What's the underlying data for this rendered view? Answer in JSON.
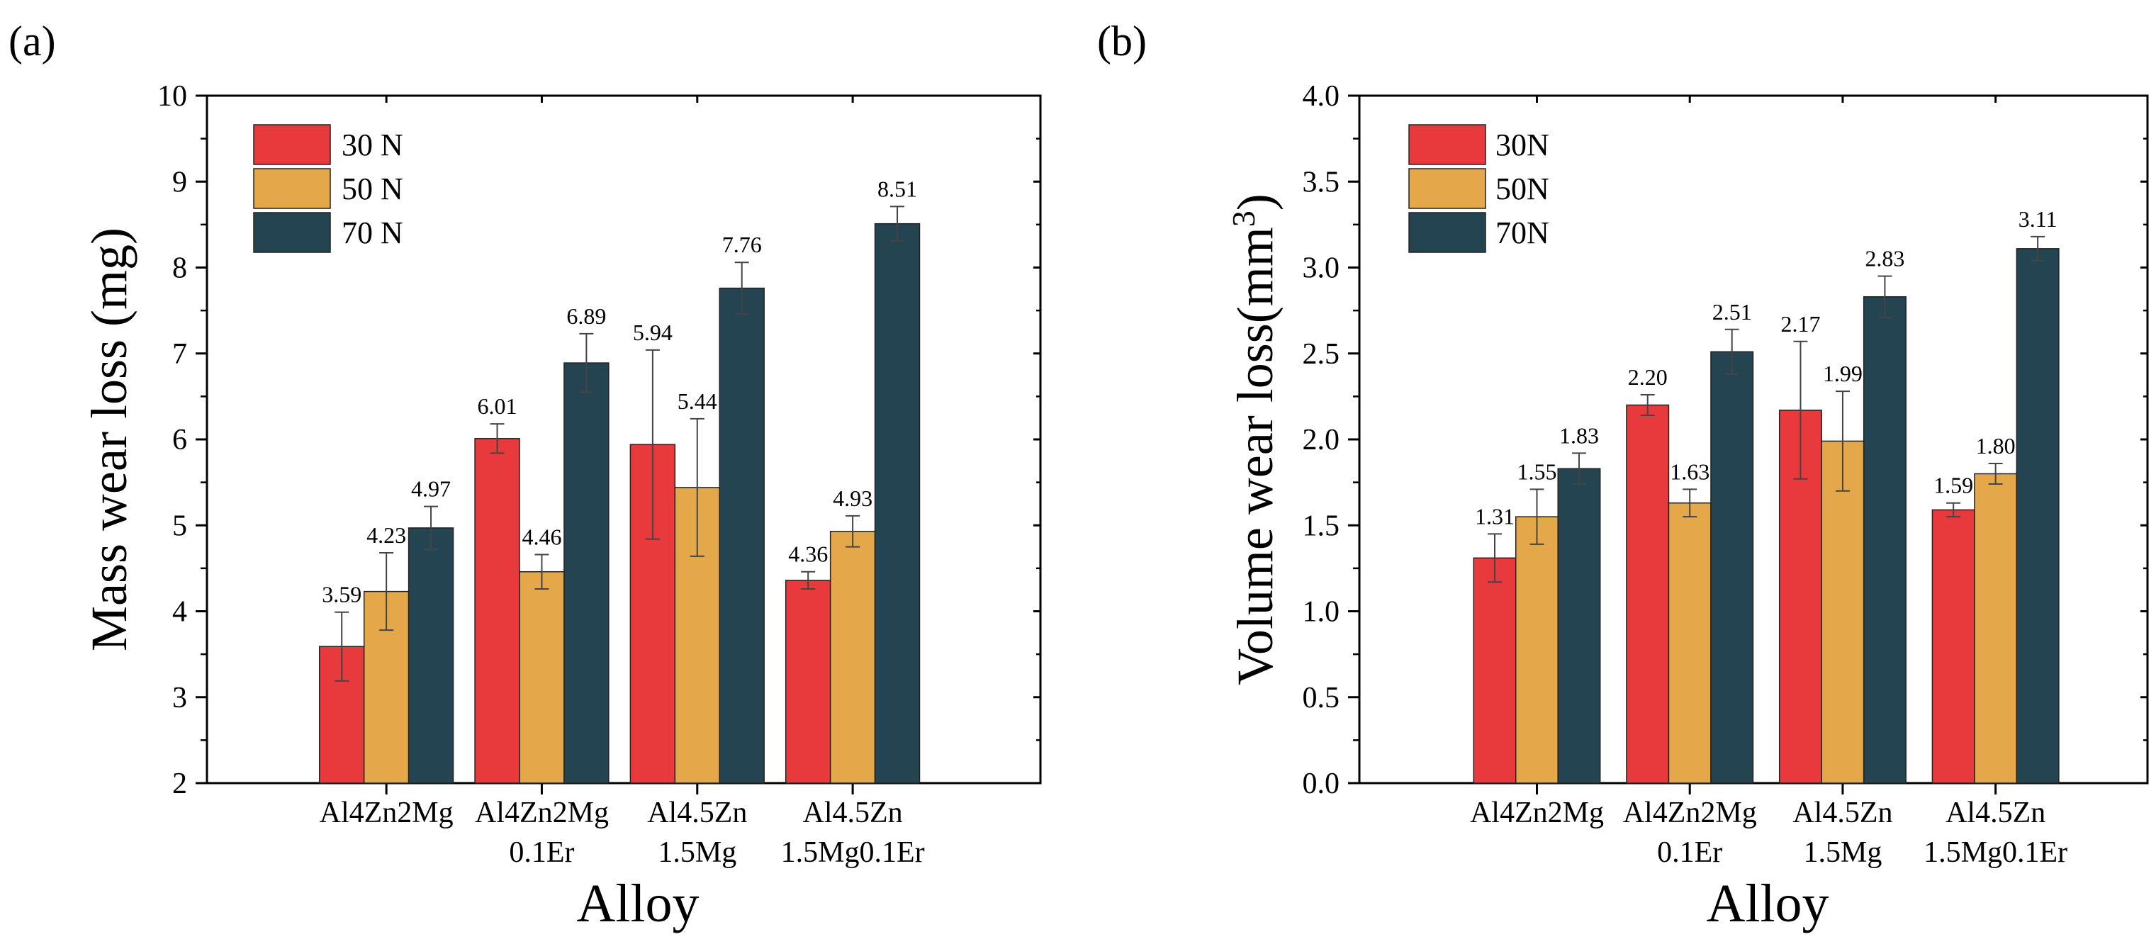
{
  "chart_data": [
    {
      "type": "bar",
      "panel_label": "(a)",
      "xlabel": "Alloy",
      "ylabel": "Mass wear loss (mg)",
      "ylim": [
        2,
        10
      ],
      "yticks": [
        "2",
        "3",
        "4",
        "5",
        "6",
        "7",
        "8",
        "9",
        "10"
      ],
      "categories": [
        [
          "Al4Zn2Mg"
        ],
        [
          "Al4Zn2Mg",
          "0.1Er"
        ],
        [
          "Al4.5Zn",
          "1.5Mg"
        ],
        [
          "Al4.5Zn",
          "1.5Mg0.1Er"
        ]
      ],
      "legend_position": "top-left",
      "series": [
        {
          "name": "30 N",
          "color": "#e8393d",
          "values": [
            3.59,
            6.01,
            5.94,
            4.36
          ],
          "labels": [
            "3.59",
            "6.01",
            "5.94",
            "4.36"
          ],
          "errors": [
            0.4,
            0.17,
            1.1,
            0.1
          ]
        },
        {
          "name": "50 N",
          "color": "#e4a84a",
          "values": [
            4.23,
            4.46,
            5.44,
            4.93
          ],
          "labels": [
            "4.23",
            "4.46",
            "5.44",
            "4.93"
          ],
          "errors": [
            0.45,
            0.2,
            0.8,
            0.18
          ]
        },
        {
          "name": "70 N",
          "color": "#244451",
          "values": [
            4.97,
            6.89,
            7.76,
            8.51
          ],
          "labels": [
            "4.97",
            "6.89",
            "7.76",
            "8.51"
          ],
          "errors": [
            0.25,
            0.34,
            0.3,
            0.2
          ]
        }
      ]
    },
    {
      "type": "bar",
      "panel_label": "(b)",
      "xlabel": "Alloy",
      "ylabel": "Volume wear loss(mm",
      "ylabel_sup": "3",
      "ylabel_end": ")",
      "ylim": [
        0,
        4
      ],
      "yticks": [
        "0.0",
        "0.5",
        "1.0",
        "1.5",
        "2.0",
        "2.5",
        "3.0",
        "3.5",
        "4.0"
      ],
      "categories": [
        [
          "Al4Zn2Mg"
        ],
        [
          "Al4Zn2Mg",
          "0.1Er"
        ],
        [
          "Al4.5Zn",
          "1.5Mg"
        ],
        [
          "Al4.5Zn",
          "1.5Mg0.1Er"
        ]
      ],
      "legend_position": "top-left",
      "series": [
        {
          "name": "30N",
          "color": "#e8393d",
          "values": [
            1.31,
            2.2,
            2.17,
            1.59
          ],
          "labels": [
            "1.31",
            "2.20",
            "2.17",
            "1.59"
          ],
          "errors": [
            0.14,
            0.06,
            0.4,
            0.04
          ]
        },
        {
          "name": "50N",
          "color": "#e4a84a",
          "values": [
            1.55,
            1.63,
            1.99,
            1.8
          ],
          "labels": [
            "1.55",
            "1.63",
            "1.99",
            "1.80"
          ],
          "errors": [
            0.16,
            0.08,
            0.29,
            0.06
          ]
        },
        {
          "name": "70N",
          "color": "#244451",
          "values": [
            1.83,
            2.51,
            2.83,
            3.11
          ],
          "labels": [
            "1.83",
            "2.51",
            "2.83",
            "3.11"
          ],
          "errors": [
            0.09,
            0.13,
            0.12,
            0.07
          ]
        }
      ]
    }
  ]
}
